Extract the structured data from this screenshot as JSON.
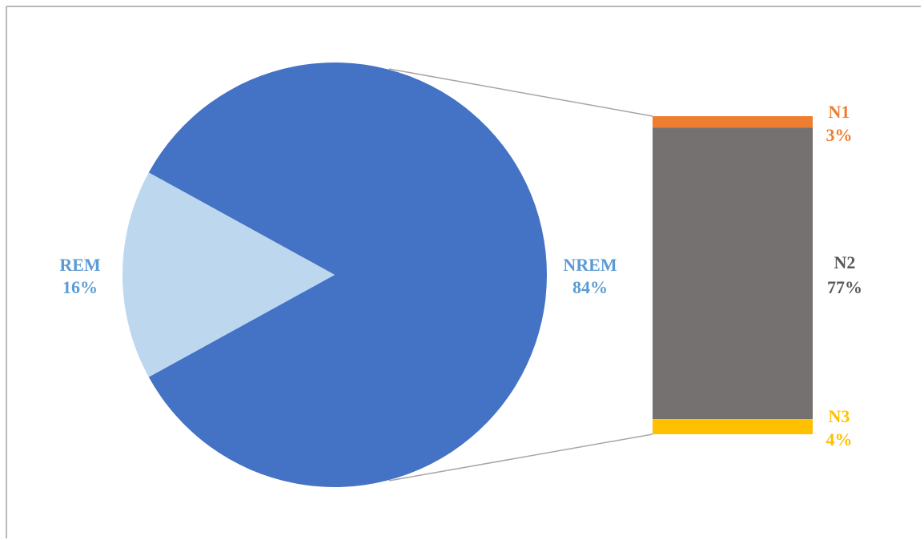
{
  "chart_data": {
    "type": "bar-of-pie",
    "title": "",
    "pie": {
      "slices": [
        {
          "label": "NREM",
          "percent_label": "84%",
          "value": 84,
          "color": "#4472C4",
          "label_color": "#5B9BD5"
        },
        {
          "label": "REM",
          "percent_label": "16%",
          "value": 16,
          "color": "#BDD7EE",
          "label_color": "#5B9BD5"
        }
      ],
      "exploded_slice": "NREM"
    },
    "bar": {
      "segments": [
        {
          "label": "N1",
          "percent_label": "3%",
          "value": 3,
          "color": "#ED7D31",
          "label_color": "#ED7D31"
        },
        {
          "label": "N2",
          "percent_label": "77%",
          "value": 77,
          "color": "#767171",
          "label_color": "#595959"
        },
        {
          "label": "N3",
          "percent_label": "4%",
          "value": 4,
          "color": "#FFC000",
          "label_color": "#FFC000"
        }
      ]
    },
    "connector_color": "#A6A6A6",
    "frame_color": "#8C8C8C"
  }
}
